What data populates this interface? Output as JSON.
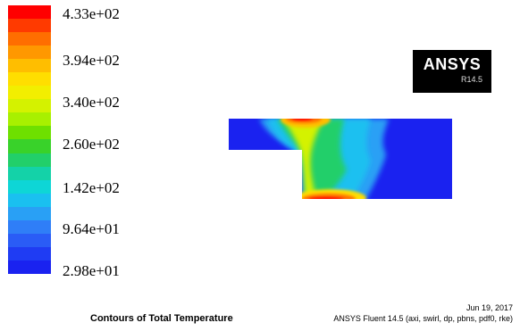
{
  "colorbar": {
    "colors": [
      "#ff0000",
      "#ff3a00",
      "#ff6e00",
      "#ff9800",
      "#ffbe00",
      "#ffde00",
      "#f2ee00",
      "#d4f200",
      "#a8f000",
      "#6ee000",
      "#39d22a",
      "#22cf6a",
      "#14d2a8",
      "#0ed6d6",
      "#1ac0f0",
      "#29a0f5",
      "#2f7ef7",
      "#2a5cf6",
      "#1f3cf3",
      "#1a22f0"
    ],
    "labels": [
      "4.33e+02",
      "3.94e+02",
      "3.40e+02",
      "2.60e+02",
      "1.42e+02",
      "9.64e+01",
      "2.98e+01"
    ]
  },
  "logo": {
    "brand": "ANSYS",
    "version": "R14.5"
  },
  "footer": {
    "title": "Contours of Total Temperature",
    "date": "Jun 19, 2017",
    "solver": "ANSYS Fluent 14.5 (axi, swirl, dp, pbns, pdf0, rke)"
  },
  "colors": {
    "background": "#ffffff",
    "domain_base": "#1a22f0",
    "hot": "#ff0000",
    "warm": "#ffd200",
    "cool": "#14d2d6"
  }
}
